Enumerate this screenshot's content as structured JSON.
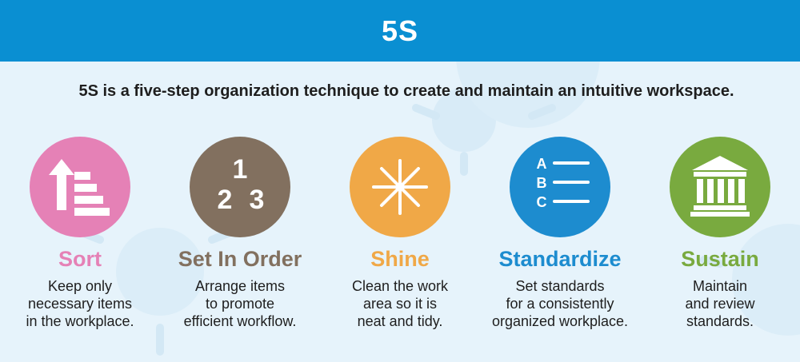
{
  "header": {
    "title": "5S",
    "color": "#0a8fd2"
  },
  "subtitle": "5S is a five-step organization technique to create and maintain an intuitive workspace.",
  "steps": [
    {
      "title": "Sort",
      "color": "#e581b6",
      "icon": "sort-ascending-icon",
      "desc": [
        "Keep only",
        "necessary items",
        "in the workplace."
      ]
    },
    {
      "title": "Set In Order",
      "color": "#82705f",
      "icon": "numbers-123-icon",
      "icon_digits": [
        "1",
        "2",
        "3"
      ],
      "desc": [
        "Arrange items",
        "to promote",
        "efficient workflow."
      ]
    },
    {
      "title": "Shine",
      "color": "#f0a847",
      "icon": "sparkle-icon",
      "desc": [
        "Clean the work",
        "area so it is",
        "neat and tidy."
      ]
    },
    {
      "title": "Standardize",
      "color": "#1d8ccf",
      "icon": "abc-list-icon",
      "icon_letters": [
        "A",
        "B",
        "C"
      ],
      "desc": [
        "Set standards",
        "for a consistently",
        "organized workplace."
      ]
    },
    {
      "title": "Sustain",
      "color": "#79aa3f",
      "icon": "building-columns-icon",
      "desc": [
        "Maintain",
        "and review",
        "standards."
      ]
    }
  ]
}
